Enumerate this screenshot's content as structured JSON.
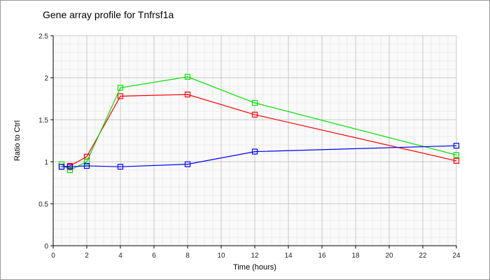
{
  "chart_data": {
    "type": "line",
    "title": "Gene array profile for Tnfrsf1a",
    "xlabel": "Time (hours)",
    "ylabel": "Ratio to Ctrl",
    "xlim": [
      0,
      24
    ],
    "ylim": [
      0,
      2.5
    ],
    "xticks": [
      0,
      2,
      4,
      6,
      8,
      10,
      12,
      14,
      16,
      18,
      20,
      22,
      24
    ],
    "yticks": [
      0,
      0.5,
      1,
      1.5,
      2,
      2.5
    ],
    "ytick_labels": [
      "0",
      "0.5",
      "1",
      "1.5",
      "2",
      "2.5"
    ],
    "grid": true,
    "x": [
      0.5,
      1,
      2,
      4,
      8,
      12,
      24
    ],
    "series": [
      {
        "name": "red",
        "color": "#ff0000",
        "values": [
          0.94,
          0.95,
          1.06,
          1.78,
          1.8,
          1.56,
          1.01
        ]
      },
      {
        "name": "green",
        "color": "#00e000",
        "values": [
          0.97,
          0.9,
          1.0,
          1.88,
          2.01,
          1.7,
          1.08
        ]
      },
      {
        "name": "blue",
        "color": "#0000ff",
        "values": [
          0.94,
          0.94,
          0.95,
          0.94,
          0.97,
          1.12,
          1.19
        ]
      }
    ]
  }
}
